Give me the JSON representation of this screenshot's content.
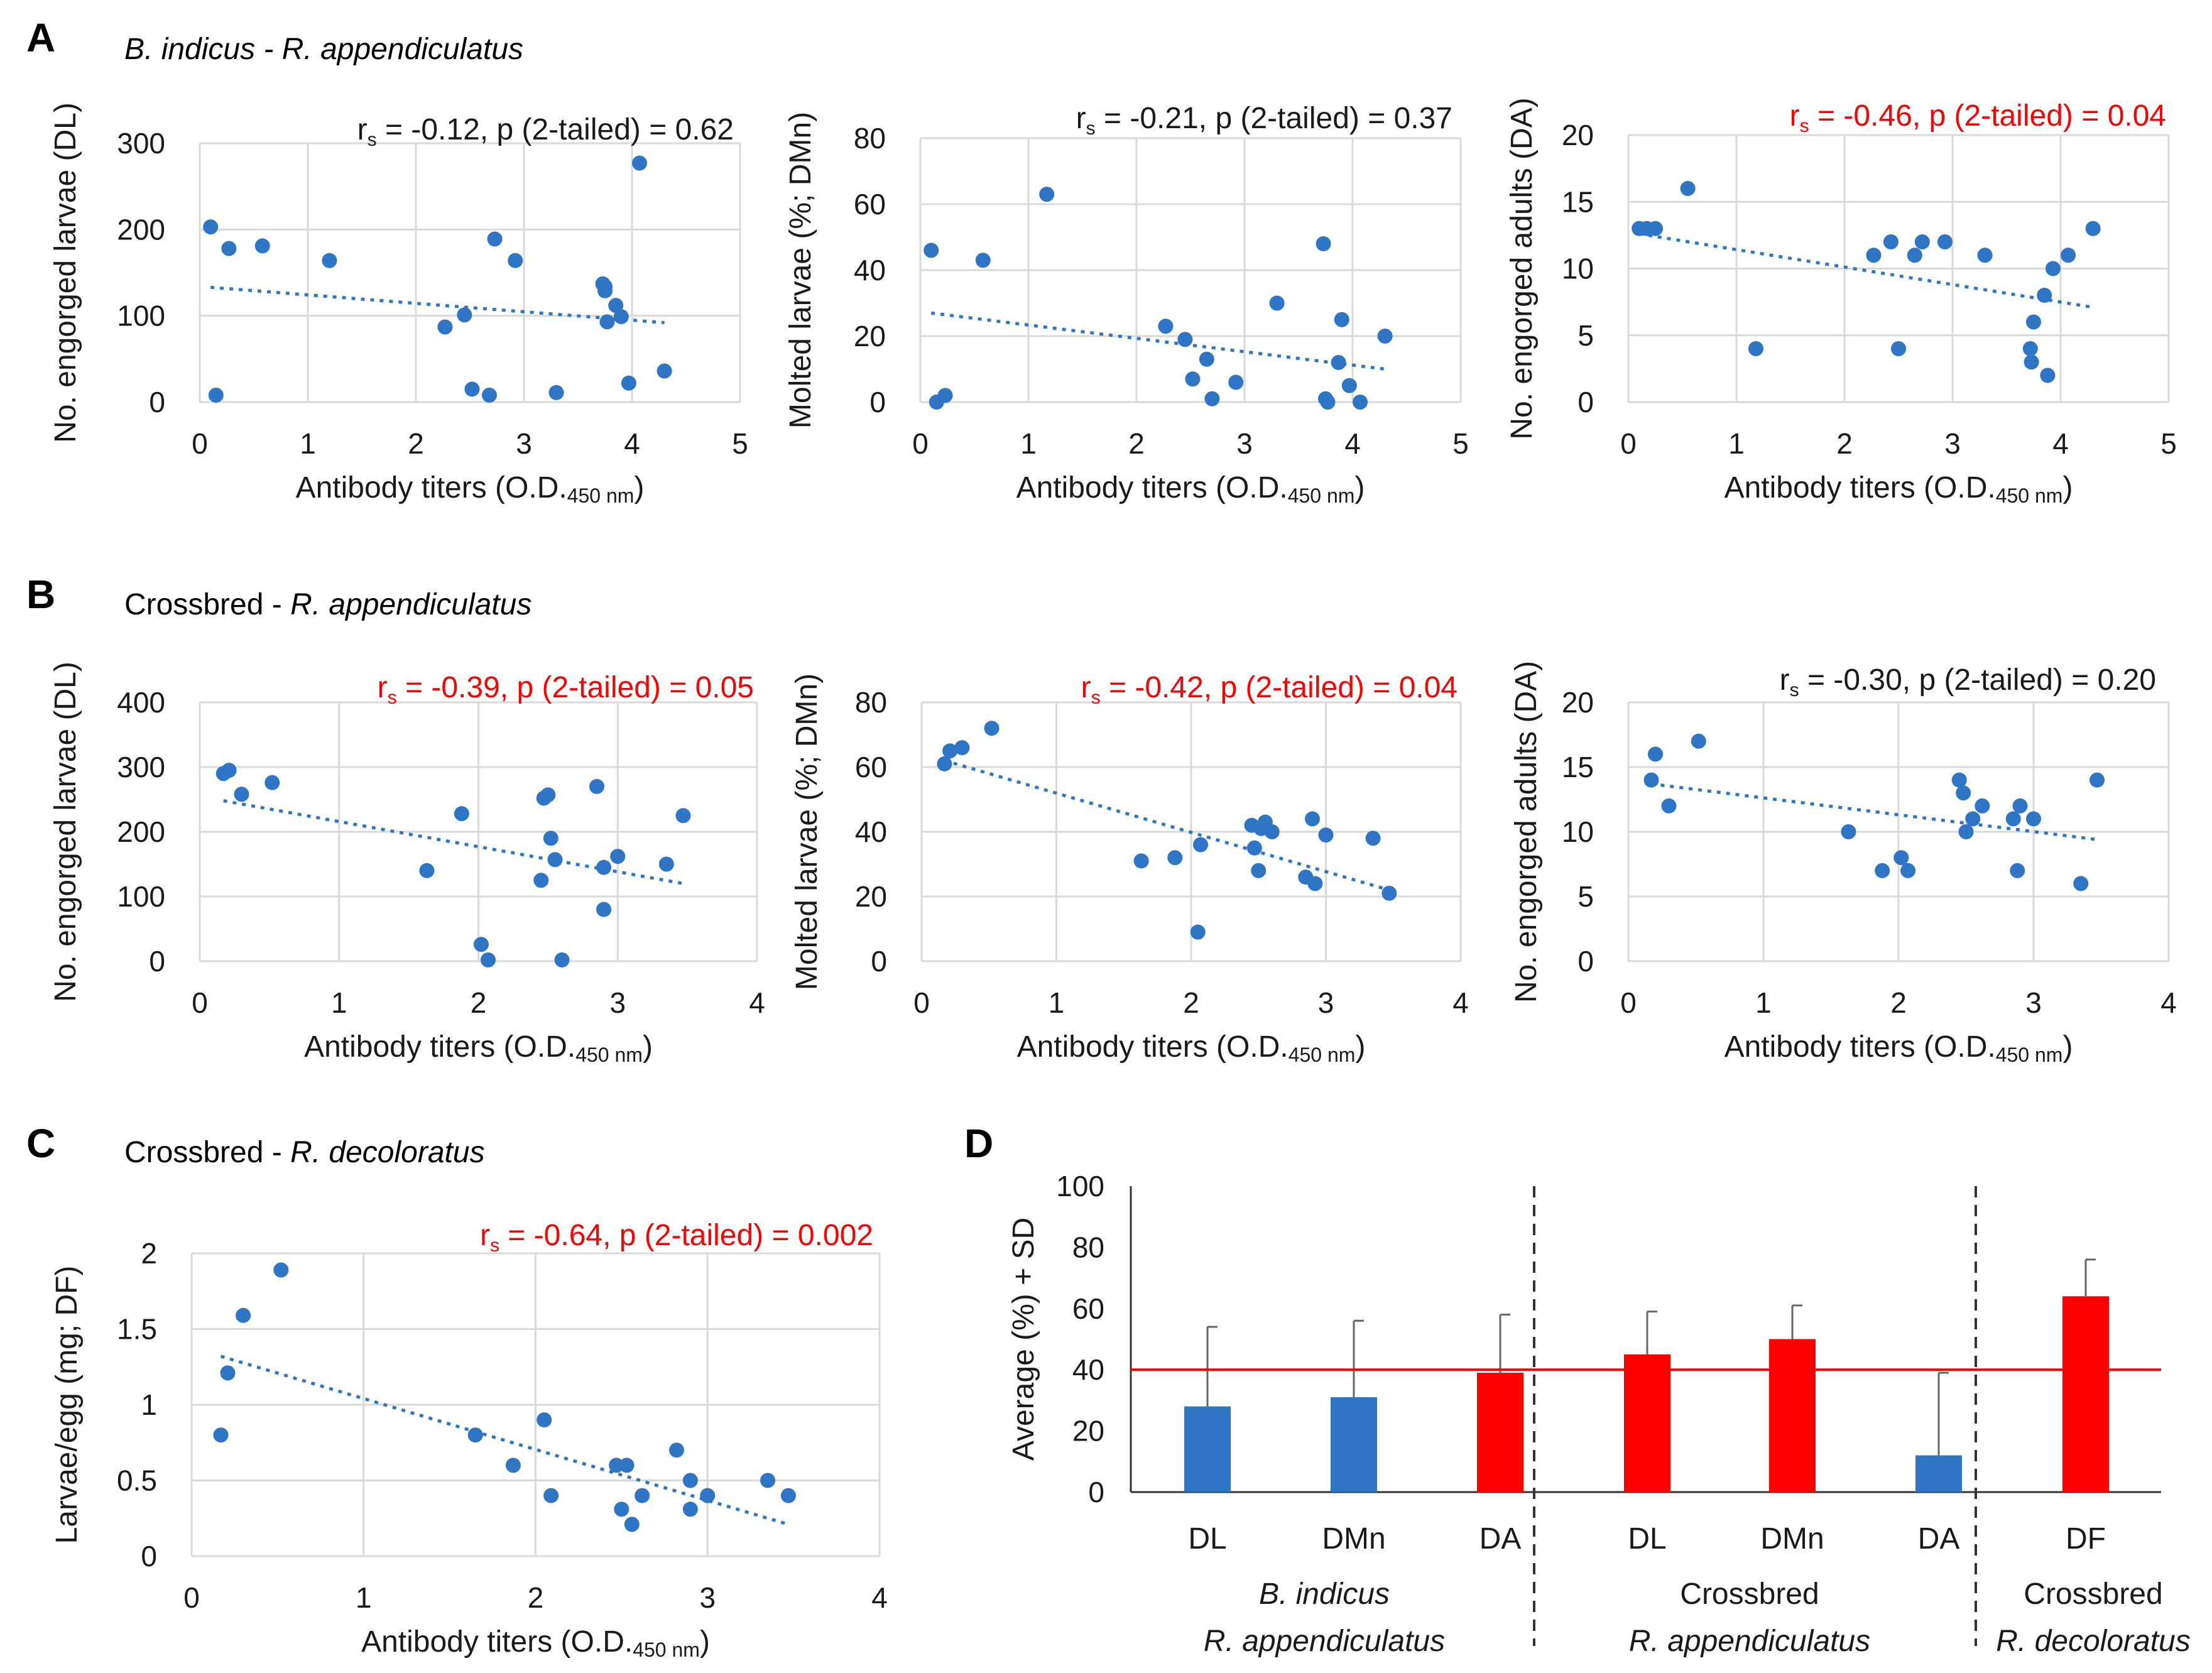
{
  "colors": {
    "dot": "#2e75c6",
    "blue_bar": "#2e75c6",
    "red": "#ff0000",
    "grid": "#d9d9d9",
    "text": "#1a1a1a"
  },
  "chart_data": [
    {
      "id": "A1",
      "type": "scatter",
      "panel": "A",
      "title": "B. indicus - R. appendiculatus",
      "xlabel": "Antibody titers (O.D.",
      "xlabel_sub": "450 nm",
      "xlabel_end": ")",
      "ylabel": "No. engorged larvae (DL)",
      "xlim": [
        0,
        5
      ],
      "ylim": [
        0,
        300
      ],
      "xticks": [
        "0",
        "1",
        "2",
        "3",
        "4",
        "5"
      ],
      "yticks": [
        "0",
        "100",
        "200",
        "300"
      ],
      "stat": {
        "r": "r",
        "sub": "s",
        "text": " = -0.12, p (2-tailed) = 0.62",
        "significant": false
      },
      "trend": [
        [
          0.1,
          133
        ],
        [
          4.3,
          92
        ]
      ],
      "x": [
        0.1,
        0.15,
        0.27,
        0.58,
        1.2,
        2.27,
        2.45,
        2.52,
        2.68,
        2.73,
        2.92,
        3.3,
        3.73,
        3.75,
        3.75,
        3.77,
        3.85,
        3.9,
        3.97,
        4.07,
        4.3
      ],
      "y": [
        203,
        8,
        178,
        181,
        164,
        87,
        101,
        15,
        8,
        189,
        164,
        11,
        137,
        134,
        129,
        93,
        112,
        99,
        22,
        277,
        36
      ]
    },
    {
      "id": "A2",
      "type": "scatter",
      "panel": "A",
      "xlabel": "Antibody titers (O.D.",
      "xlabel_sub": "450 nm",
      "xlabel_end": ")",
      "ylabel": "Molted larvae (%; DMn)",
      "xlim": [
        0,
        5
      ],
      "ylim": [
        0,
        80
      ],
      "xticks": [
        "0",
        "1",
        "2",
        "3",
        "4",
        "5"
      ],
      "yticks": [
        "0",
        "20",
        "40",
        "60",
        "80"
      ],
      "stat": {
        "r": "r",
        "sub": "s",
        "text": " = -0.21, p (2-tailed) = 0.37",
        "significant": false
      },
      "trend": [
        [
          0.1,
          27
        ],
        [
          4.3,
          10
        ]
      ],
      "x": [
        0.1,
        0.15,
        0.23,
        0.58,
        1.17,
        2.27,
        2.45,
        2.52,
        2.65,
        2.7,
        2.92,
        3.3,
        3.73,
        3.75,
        3.77,
        3.87,
        3.9,
        3.97,
        4.07,
        4.3
      ],
      "y": [
        46,
        0,
        2,
        43,
        63,
        23,
        19,
        7,
        13,
        1,
        6,
        30,
        48,
        1,
        0,
        12,
        25,
        5,
        0,
        20
      ]
    },
    {
      "id": "A3",
      "type": "scatter",
      "panel": "A",
      "xlabel": "Antibody titers (O.D.",
      "xlabel_sub": "450 nm",
      "xlabel_end": ")",
      "ylabel": "No. engorged adults (DA)",
      "xlim": [
        0,
        5
      ],
      "ylim": [
        0,
        20
      ],
      "xticks": [
        "0",
        "1",
        "2",
        "3",
        "4",
        "5"
      ],
      "yticks": [
        "0",
        "5",
        "10",
        "15",
        "20"
      ],
      "stat": {
        "r": "r",
        "sub": "s",
        "text": " = -0.46, p (2-tailed) = 0.04",
        "significant": true
      },
      "trend": [
        [
          0.1,
          12.6
        ],
        [
          4.3,
          7.1
        ]
      ],
      "x": [
        0.1,
        0.17,
        0.25,
        0.55,
        1.18,
        2.27,
        2.43,
        2.5,
        2.65,
        2.72,
        2.93,
        3.3,
        3.72,
        3.73,
        3.75,
        3.85,
        3.88,
        3.93,
        4.07,
        4.3
      ],
      "y": [
        13,
        13,
        13,
        16,
        4,
        11,
        12,
        4,
        11,
        12,
        12,
        11,
        4,
        3,
        6,
        8,
        2,
        10,
        11,
        13
      ]
    },
    {
      "id": "B1",
      "type": "scatter",
      "panel": "B",
      "title": "Crossbred - R. appendiculatus",
      "xlabel": "Antibody titers (O.D.",
      "xlabel_sub": "450 nm",
      "xlabel_end": ")",
      "ylabel": "No. engorged larvae (DL)",
      "xlim": [
        0,
        4
      ],
      "ylim": [
        0,
        400
      ],
      "xticks": [
        "0",
        "1",
        "2",
        "3",
        "4"
      ],
      "yticks": [
        "0",
        "100",
        "200",
        "300",
        "400"
      ],
      "stat": {
        "r": "r",
        "sub": "s",
        "text": " = -0.39, p (2-tailed) = 0.05",
        "significant": true
      },
      "trend": [
        [
          0.17,
          248
        ],
        [
          3.47,
          120
        ]
      ],
      "x": [
        0.17,
        0.21,
        0.3,
        0.52,
        1.63,
        1.88,
        2.02,
        2.07,
        2.45,
        2.47,
        2.5,
        2.52,
        2.55,
        2.6,
        2.85,
        2.9,
        2.9,
        3.0,
        3.35,
        3.47
      ],
      "y": [
        290,
        295,
        258,
        276,
        140,
        228,
        26,
        2,
        125,
        252,
        257,
        190,
        157,
        2,
        270,
        80,
        145,
        162,
        150,
        225
      ]
    },
    {
      "id": "B2",
      "type": "scatter",
      "panel": "B",
      "xlabel": "Antibody titers (O.D.",
      "xlabel_sub": "450 nm",
      "xlabel_end": ")",
      "ylabel": "Molted larvae (%; DMn)",
      "xlim": [
        0,
        4
      ],
      "ylim": [
        0,
        80
      ],
      "xticks": [
        "0",
        "1",
        "2",
        "3",
        "4"
      ],
      "yticks": [
        "0",
        "20",
        "40",
        "60",
        "80"
      ],
      "stat": {
        "r": "r",
        "sub": "s",
        "text": " = -0.42, p (2-tailed) = 0.04",
        "significant": true
      },
      "trend": [
        [
          0.17,
          62
        ],
        [
          3.47,
          22
        ]
      ],
      "x": [
        0.17,
        0.21,
        0.3,
        0.52,
        1.63,
        1.88,
        2.05,
        2.07,
        2.45,
        2.47,
        2.5,
        2.52,
        2.55,
        2.6,
        2.85,
        2.9,
        2.92,
        3.0,
        3.35,
        3.47
      ],
      "y": [
        61,
        65,
        66,
        72,
        31,
        32,
        9,
        36,
        42,
        35,
        28,
        41,
        43,
        40,
        26,
        44,
        24,
        39,
        38,
        21
      ]
    },
    {
      "id": "B3",
      "type": "scatter",
      "panel": "B",
      "xlabel": "Antibody titers (O.D.",
      "xlabel_sub": "450 nm",
      "xlabel_end": ")",
      "ylabel": "No. engorged adults (DA)",
      "xlim": [
        0,
        4
      ],
      "ylim": [
        0,
        20
      ],
      "xticks": [
        "0",
        "1",
        "2",
        "3",
        "4"
      ],
      "yticks": [
        "0",
        "5",
        "10",
        "15",
        "20"
      ],
      "stat": {
        "r": "r",
        "sub": "s",
        "text": " = -0.30, p (2-tailed) = 0.20",
        "significant": false
      },
      "trend": [
        [
          0.17,
          13.7
        ],
        [
          3.47,
          9.4
        ]
      ],
      "x": [
        0.17,
        0.2,
        0.3,
        0.52,
        1.63,
        1.88,
        2.02,
        2.07,
        2.45,
        2.48,
        2.5,
        2.55,
        2.62,
        2.85,
        2.88,
        2.9,
        3.0,
        3.35,
        3.47
      ],
      "y": [
        14,
        16,
        12,
        17,
        10,
        7,
        8,
        7,
        14,
        13,
        10,
        11,
        12,
        11,
        7,
        12,
        11,
        6,
        14
      ]
    },
    {
      "id": "C1",
      "type": "scatter",
      "panel": "C",
      "title": "Crossbred - R. decoloratus",
      "xlabel": "Antibody titers (O.D.",
      "xlabel_sub": "450 nm",
      "xlabel_end": ")",
      "ylabel": "Larvae/egg (mg; DF)",
      "xlim": [
        0,
        4
      ],
      "ylim": [
        0,
        2
      ],
      "xticks": [
        "0",
        "1",
        "2",
        "3",
        "4"
      ],
      "yticks": [
        "0",
        "0.5",
        "1",
        "1.5",
        "2"
      ],
      "stat": {
        "r": "r",
        "sub": "s",
        "text": " = -0.64, p (2-tailed) = 0.002",
        "significant": true
      },
      "trend": [
        [
          0.17,
          1.32
        ],
        [
          3.47,
          0.21
        ]
      ],
      "x": [
        0.17,
        0.21,
        0.3,
        0.52,
        1.65,
        1.87,
        2.05,
        2.09,
        2.47,
        2.5,
        2.53,
        2.56,
        2.62,
        2.82,
        2.9,
        2.9,
        3.0,
        3.35,
        3.47
      ],
      "y": [
        0.8,
        1.21,
        1.59,
        1.89,
        0.8,
        0.6,
        0.9,
        0.4,
        0.6,
        0.31,
        0.6,
        0.21,
        0.4,
        0.7,
        0.31,
        0.5,
        0.4,
        0.5,
        0.4
      ]
    },
    {
      "id": "D",
      "type": "bar",
      "panel": "D",
      "ylabel": "Average (%) + SD",
      "ylim": [
        0,
        100
      ],
      "yticks": [
        "0",
        "20",
        "40",
        "60",
        "80",
        "100"
      ],
      "threshold": 40,
      "categories": [
        "DL",
        "DMn",
        "DA",
        "DL",
        "DMn",
        "DA",
        "DF"
      ],
      "values": [
        28,
        31,
        39,
        45,
        50,
        12,
        64
      ],
      "errors": [
        26,
        25,
        19,
        14,
        11,
        27,
        12
      ],
      "bar_colors": [
        "#2e75c6",
        "#2e75c6",
        "#ff0000",
        "#ff0000",
        "#ff0000",
        "#2e75c6",
        "#ff0000"
      ],
      "groups": [
        {
          "line1": "B. indicus",
          "line2": "R. appendiculatus"
        },
        {
          "line1": "Crossbred",
          "line2": "R. appendiculatus"
        },
        {
          "line1": "Crossbred",
          "line2": "R. decoloratus"
        }
      ]
    }
  ],
  "panel_letters": [
    "A",
    "B",
    "C",
    "D"
  ],
  "panel_titles": {
    "A": {
      "pre": "",
      "italic": "B. indicus - R. appendiculatus"
    },
    "B": {
      "pre": "Crossbred - ",
      "italic": "R. appendiculatus"
    },
    "C": {
      "pre": "Crossbred - ",
      "italic": "R. decoloratus"
    }
  }
}
